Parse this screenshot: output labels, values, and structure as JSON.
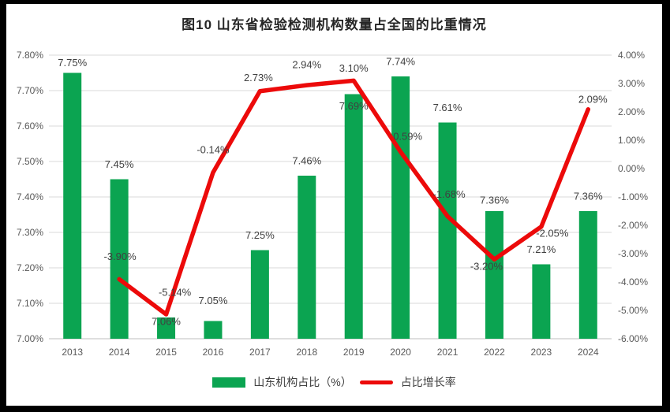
{
  "title": "图10  山东省检验检测机构数量占全国的比重情况",
  "legend": {
    "bar_label": "山东机构占比（%）",
    "line_label": "占比增长率"
  },
  "colors": {
    "bar": "#0BA451",
    "line": "#EC0A0A",
    "grid": "#D9D9D9",
    "axis_line": "#BFBFBF",
    "tick_text": "#595959",
    "label_text": "#404040"
  },
  "chart_data": {
    "type": "combo",
    "title": "图10  山东省检验检测机构数量占全国的比重情况",
    "categories": [
      "2013",
      "2014",
      "2015",
      "2016",
      "2017",
      "2018",
      "2019",
      "2020",
      "2021",
      "2022",
      "2023",
      "2024"
    ],
    "series": [
      {
        "name": "山东机构占比（%）",
        "type": "bar",
        "axis": "left",
        "values": [
          7.75,
          7.45,
          7.06,
          7.05,
          7.25,
          7.46,
          7.69,
          7.74,
          7.61,
          7.36,
          7.21,
          7.36
        ],
        "labels": [
          "7.75%",
          "7.45%",
          "7.06%",
          "7.05%",
          "7.25%",
          "7.46%",
          "7.69%",
          "7.74%",
          "7.61%",
          "7.36%",
          "7.21%",
          "7.36%"
        ]
      },
      {
        "name": "占比增长率",
        "type": "line",
        "axis": "right",
        "values": [
          null,
          -3.9,
          -5.14,
          -0.14,
          2.73,
          2.94,
          3.1,
          0.59,
          -1.68,
          -3.2,
          -2.05,
          2.09
        ],
        "labels": [
          null,
          "-3.90%",
          "-5.14%",
          "-0.14%",
          "2.73%",
          "2.94%",
          "3.10%",
          "0.59%",
          "-1.68%",
          "-3.20%",
          "-2.05%",
          "2.09%"
        ]
      }
    ],
    "left_axis": {
      "min": 7.0,
      "max": 7.8,
      "step": 0.1,
      "ticks": [
        "7.80%",
        "7.70%",
        "7.60%",
        "7.50%",
        "7.40%",
        "7.30%",
        "7.20%",
        "7.10%",
        "7.00%"
      ]
    },
    "right_axis": {
      "min": -6.0,
      "max": 4.0,
      "step": 1.0,
      "ticks": [
        "4.00%",
        "3.00%",
        "2.00%",
        "1.00%",
        "0.00%",
        "-1.00%",
        "-2.00%",
        "-3.00%",
        "-4.00%",
        "-5.00%",
        "-6.00%"
      ]
    },
    "grid": true,
    "legend_position": "bottom"
  }
}
